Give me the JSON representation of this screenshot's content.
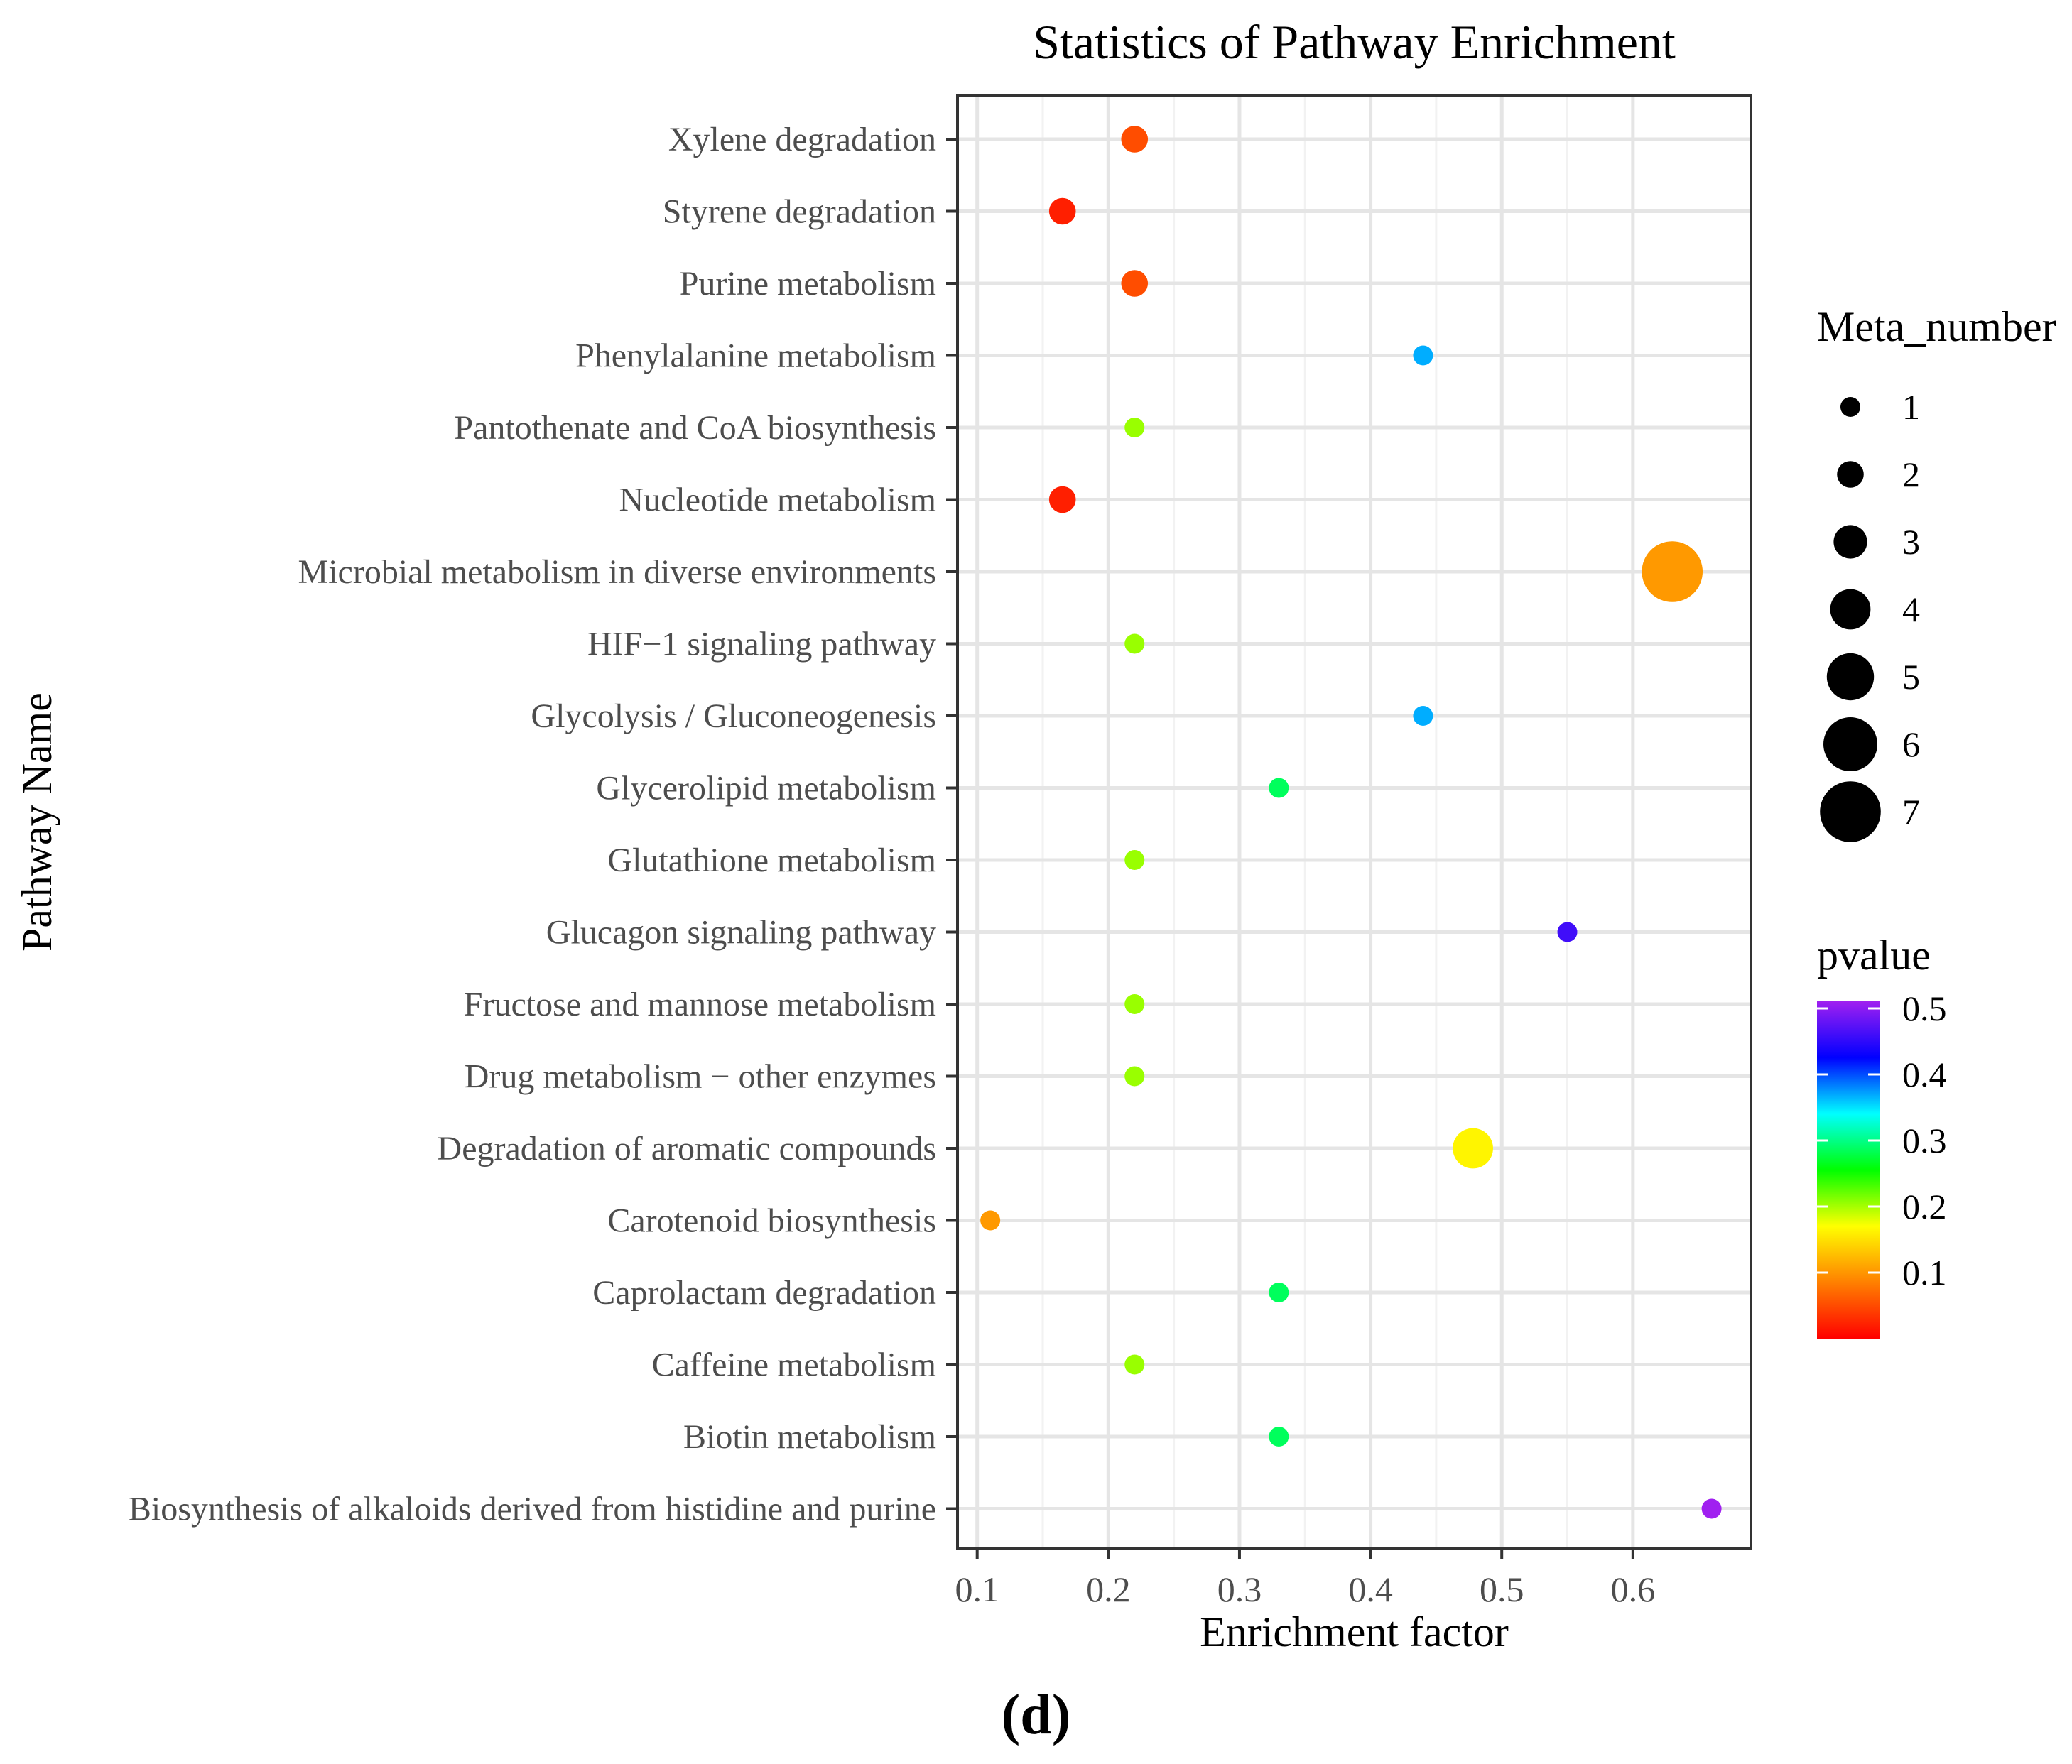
{
  "chart_data": {
    "type": "scatter",
    "title": "Statistics of Pathway Enrichment",
    "xlabel": "Enrichment factor",
    "ylabel": "Pathway Name",
    "xlim": [
      0.085,
      0.69
    ],
    "x_ticks": [
      0.1,
      0.2,
      0.3,
      0.4,
      0.5,
      0.6
    ],
    "x_tick_labels": [
      "0.1",
      "0.2",
      "0.3",
      "0.4",
      "0.5",
      "0.6"
    ],
    "grid": true,
    "categories": [
      "Xylene degradation",
      "Styrene degradation",
      "Purine metabolism",
      "Phenylalanine metabolism",
      "Pantothenate and CoA biosynthesis",
      "Nucleotide metabolism",
      "Microbial metabolism in diverse environments",
      "HIF−1 signaling pathway",
      "Glycolysis / Gluconeogenesis",
      "Glycerolipid metabolism",
      "Glutathione metabolism",
      "Glucagon signaling pathway",
      "Fructose and mannose metabolism",
      "Drug metabolism − other enzymes",
      "Degradation of aromatic compounds",
      "Carotenoid biosynthesis",
      "Caprolactam degradation",
      "Caffeine metabolism",
      "Biotin metabolism",
      "Biosynthesis of alkaloids derived from histidine and purine"
    ],
    "points": [
      {
        "pathway": "Xylene degradation",
        "enrichment_factor": 0.22,
        "meta_number": 2,
        "pvalue": 0.05
      },
      {
        "pathway": "Styrene degradation",
        "enrichment_factor": 0.165,
        "meta_number": 2,
        "pvalue": 0.02
      },
      {
        "pathway": "Purine metabolism",
        "enrichment_factor": 0.22,
        "meta_number": 2,
        "pvalue": 0.05
      },
      {
        "pathway": "Phenylalanine metabolism",
        "enrichment_factor": 0.44,
        "meta_number": 1,
        "pvalue": 0.36
      },
      {
        "pathway": "Pantothenate and CoA biosynthesis",
        "enrichment_factor": 0.22,
        "meta_number": 1,
        "pvalue": 0.2
      },
      {
        "pathway": "Nucleotide metabolism",
        "enrichment_factor": 0.165,
        "meta_number": 2,
        "pvalue": 0.02
      },
      {
        "pathway": "Microbial metabolism in diverse environments",
        "enrichment_factor": 0.63,
        "meta_number": 7,
        "pvalue": 0.1
      },
      {
        "pathway": "HIF−1 signaling pathway",
        "enrichment_factor": 0.22,
        "meta_number": 1,
        "pvalue": 0.2
      },
      {
        "pathway": "Glycolysis / Gluconeogenesis",
        "enrichment_factor": 0.44,
        "meta_number": 1,
        "pvalue": 0.36
      },
      {
        "pathway": "Glycerolipid metabolism",
        "enrichment_factor": 0.33,
        "meta_number": 1,
        "pvalue": 0.28
      },
      {
        "pathway": "Glutathione metabolism",
        "enrichment_factor": 0.22,
        "meta_number": 1,
        "pvalue": 0.2
      },
      {
        "pathway": "Glucagon signaling pathway",
        "enrichment_factor": 0.55,
        "meta_number": 1,
        "pvalue": 0.45
      },
      {
        "pathway": "Fructose and mannose metabolism",
        "enrichment_factor": 0.22,
        "meta_number": 1,
        "pvalue": 0.2
      },
      {
        "pathway": "Drug metabolism − other enzymes",
        "enrichment_factor": 0.22,
        "meta_number": 1,
        "pvalue": 0.2
      },
      {
        "pathway": "Degradation of aromatic compounds",
        "enrichment_factor": 0.478,
        "meta_number": 4,
        "pvalue": 0.16
      },
      {
        "pathway": "Carotenoid biosynthesis",
        "enrichment_factor": 0.11,
        "meta_number": 1,
        "pvalue": 0.1
      },
      {
        "pathway": "Caprolactam degradation",
        "enrichment_factor": 0.33,
        "meta_number": 1,
        "pvalue": 0.28
      },
      {
        "pathway": "Caffeine metabolism",
        "enrichment_factor": 0.22,
        "meta_number": 1,
        "pvalue": 0.2
      },
      {
        "pathway": "Biotin metabolism",
        "enrichment_factor": 0.33,
        "meta_number": 1,
        "pvalue": 0.28
      },
      {
        "pathway": "Biosynthesis of alkaloids derived from histidine and purine",
        "enrichment_factor": 0.66,
        "meta_number": 1,
        "pvalue": 0.5
      }
    ],
    "size_legend": {
      "title": "Meta_number",
      "values": [
        1,
        2,
        3,
        4,
        5,
        6,
        7
      ],
      "labels": [
        "1",
        "2",
        "3",
        "4",
        "5",
        "6",
        "7"
      ]
    },
    "color_legend": {
      "title": "pvalue",
      "range": [
        0.0,
        0.5
      ],
      "ticks": [
        0.1,
        0.2,
        0.3,
        0.4,
        0.5
      ],
      "tick_labels": [
        "0.1",
        "0.2",
        "0.3",
        "0.4",
        "0.5"
      ],
      "colorscale": [
        "#ff0000",
        "#ff8000",
        "#ffff00",
        "#00ff00",
        "#00ffff",
        "#0000ff",
        "#a020f0"
      ]
    },
    "legend_position": "right"
  },
  "caption": "(d)"
}
